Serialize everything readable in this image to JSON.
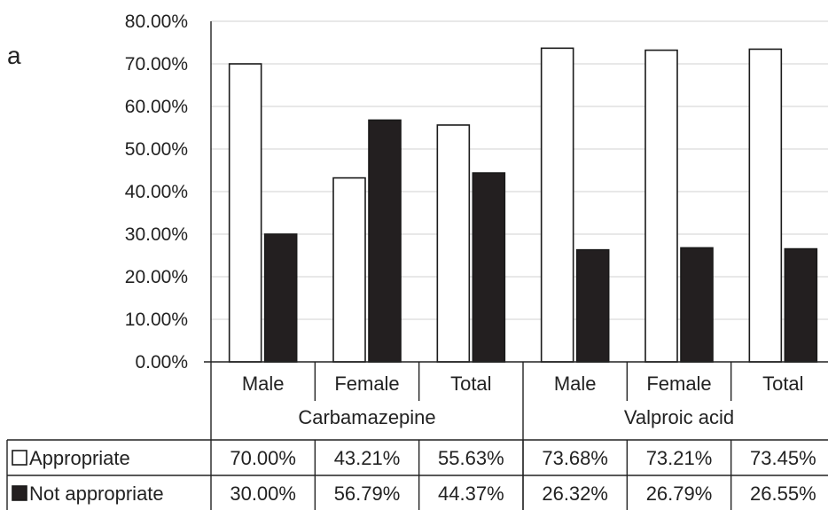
{
  "panel_label": "a",
  "chart_data": {
    "type": "bar",
    "title": "",
    "ylabel": "",
    "xlabel": "",
    "ylim": [
      0,
      80
    ],
    "yticks": [
      "0.00%",
      "10.00%",
      "20.00%",
      "30.00%",
      "40.00%",
      "50.00%",
      "60.00%",
      "70.00%",
      "80.00%"
    ],
    "groups": [
      {
        "name": "Carbamazepine",
        "categories": [
          "Male",
          "Female",
          "Total"
        ]
      },
      {
        "name": "Valproic acid",
        "categories": [
          "Male",
          "Female",
          "Total"
        ]
      }
    ],
    "categories": [
      "Male",
      "Female",
      "Total",
      "Male",
      "Female",
      "Total"
    ],
    "series": [
      {
        "name": "Appropriate",
        "color": "#ffffff",
        "values": [
          70.0,
          43.21,
          55.63,
          73.68,
          73.21,
          73.45
        ],
        "labels": [
          "70.00%",
          "43.21%",
          "55.63%",
          "73.68%",
          "73.21%",
          "73.45%"
        ]
      },
      {
        "name": "Not appropriate",
        "color": "#231f20",
        "values": [
          30.0,
          56.79,
          44.37,
          26.32,
          26.79,
          26.55
        ],
        "labels": [
          "30.00%",
          "56.79%",
          "44.37%",
          "26.32%",
          "26.79%",
          "26.55%"
        ]
      }
    ],
    "grid": true,
    "legend": "data-table-rows"
  }
}
